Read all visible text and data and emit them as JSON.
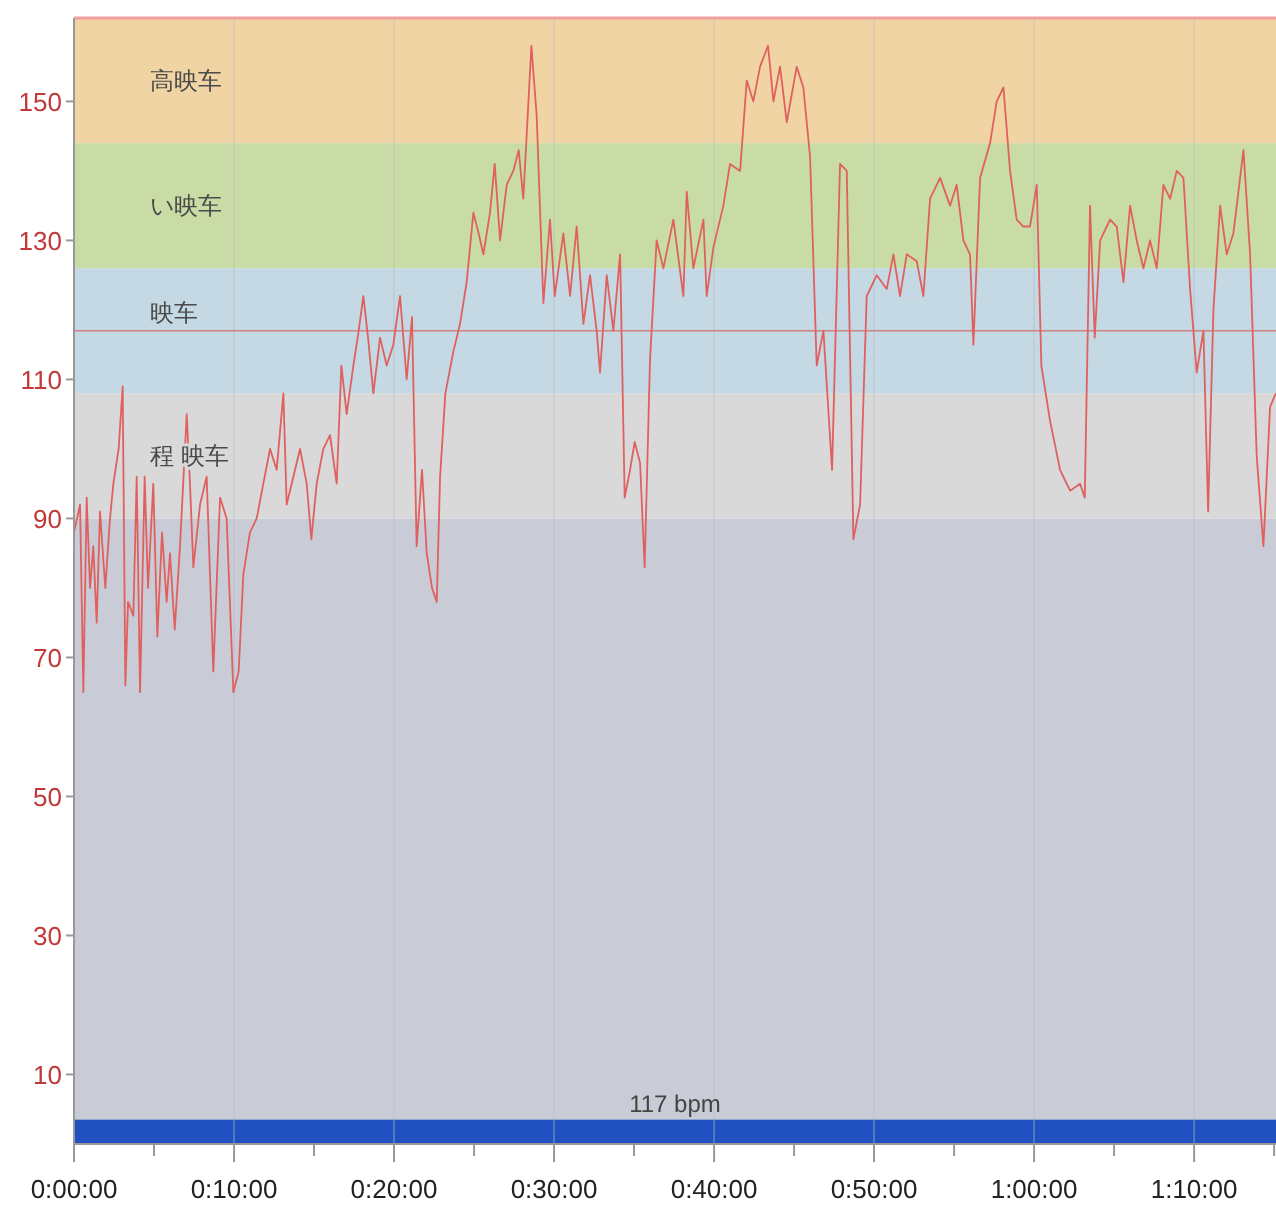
{
  "chart_data": {
    "type": "line",
    "x": [
      0,
      0.0063,
      0.0097,
      0.0132,
      0.0167,
      0.0201,
      0.0236,
      0.0271,
      0.0326,
      0.0375,
      0.041,
      0.0465,
      0.0507,
      0.0535,
      0.0563,
      0.0618,
      0.0653,
      0.0688,
      0.0736,
      0.0771,
      0.0826,
      0.0868,
      0.0917,
      0.0965,
      0.1,
      0.1049,
      0.1104,
      0.1174,
      0.1208,
      0.1243,
      0.1313,
      0.1382,
      0.1451,
      0.1521,
      0.159,
      0.166,
      0.1715,
      0.1764,
      0.1833,
      0.1903,
      0.1972,
      0.2042,
      0.2111,
      0.2181,
      0.2215,
      0.2285,
      0.2354,
      0.2424,
      0.2472,
      0.2528,
      0.2597,
      0.2667,
      0.2736,
      0.2785,
      0.284,
      0.291,
      0.2965,
      0.3014,
      0.3063,
      0.3118,
      0.3188,
      0.3257,
      0.3326,
      0.3396,
      0.3465,
      0.3521,
      0.3569,
      0.3625,
      0.3674,
      0.3729,
      0.3778,
      0.3813,
      0.3868,
      0.3951,
      0.4021,
      0.409,
      0.416,
      0.4215,
      0.4264,
      0.4333,
      0.4382,
      0.4438,
      0.4507,
      0.4576,
      0.4632,
      0.468,
      0.4764,
      0.4819,
      0.4889,
      0.4958,
      0.5007,
      0.5097,
      0.5167,
      0.5236,
      0.5306,
      0.5375,
      0.5444,
      0.5479,
      0.5549,
      0.5618,
      0.5688,
      0.5736,
      0.5792,
      0.584,
      0.5896,
      0.5944,
      0.6,
      0.6069,
      0.6139,
      0.6243,
      0.6347,
      0.6382,
      0.6451,
      0.6556,
      0.659,
      0.666,
      0.6764,
      0.6833,
      0.6938,
      0.7007,
      0.7076,
      0.7146,
      0.7229,
      0.7285,
      0.7354,
      0.7424,
      0.7528,
      0.7597,
      0.7667,
      0.7736,
      0.7806,
      0.7896,
      0.7979,
      0.8049,
      0.8118,
      0.8188,
      0.8257,
      0.8361,
      0.8465,
      0.8535,
      0.8604,
      0.8674,
      0.8778,
      0.8847,
      0.8917,
      0.9021,
      0.9125,
      0.9194,
      0.9264,
      0.9333,
      0.9368,
      0.9438,
      0.9542,
      0.9611,
      0.9681,
      0.975,
      0.9819,
      0.9889,
      0.9958,
      1.0028,
      1.0076,
      1.0167,
      1.0271,
      1.0375,
      1.0479,
      1.0528,
      1.0583,
      1.0632,
      1.0688,
      1.0792,
      1.0861,
      1.0931,
      1.1,
      1.1069,
      1.1139,
      1.1208,
      1.1278,
      1.1347,
      1.1417,
      1.1486,
      1.1556,
      1.1625,
      1.1694,
      1.1764,
      1.1813,
      1.1868,
      1.1938,
      1.2007,
      1.2076,
      1.2181,
      1.225,
      1.2319,
      1.2389,
      1.2458,
      1.2517
    ],
    "series": [
      {
        "color": "#e06060",
        "values": [
          88,
          92,
          65,
          93,
          80,
          86,
          75,
          91,
          80,
          90,
          95,
          100,
          109,
          66,
          78,
          76,
          96,
          65,
          96,
          80,
          95,
          73,
          88,
          78,
          85,
          74,
          86,
          105,
          95,
          83,
          92,
          96,
          68,
          93,
          90,
          65,
          68,
          82,
          88,
          90,
          95,
          100,
          97,
          108,
          92,
          96,
          100,
          95,
          87,
          95,
          100,
          102,
          95,
          112,
          105,
          112,
          117,
          122,
          116,
          108,
          116,
          112,
          115,
          122,
          110,
          119,
          86,
          97,
          85,
          80,
          78,
          96,
          108,
          114,
          118,
          124,
          134,
          131,
          128,
          134,
          141,
          130,
          138,
          140,
          143,
          136,
          158,
          148,
          121,
          133,
          122,
          131,
          122,
          132,
          118,
          125,
          117,
          111,
          125,
          117,
          128,
          93,
          97,
          101,
          98,
          83,
          113,
          130,
          126,
          133,
          122,
          137,
          126,
          133,
          122,
          129,
          135,
          141,
          140,
          153,
          150,
          155,
          158,
          150,
          155,
          147,
          155,
          152,
          142,
          112,
          117,
          97,
          141,
          140,
          87,
          92,
          122,
          125,
          123,
          128,
          122,
          128,
          127,
          122,
          136,
          139,
          135,
          138,
          130,
          128,
          115,
          139,
          144,
          150,
          152,
          140,
          133,
          132,
          132,
          138,
          112,
          104,
          97,
          94,
          95,
          93,
          135,
          116,
          130,
          133,
          132,
          124,
          135,
          130,
          126,
          130,
          126,
          138,
          136,
          140,
          139,
          123,
          111,
          117,
          91,
          120,
          135,
          128,
          131,
          143,
          128,
          99,
          86,
          106,
          108
        ]
      }
    ],
    "xlim": [
      0,
      1.252
    ],
    "xticks": [
      {
        "value": 0,
        "label": "0:00:00"
      },
      {
        "value": 0.0833,
        "label": null
      },
      {
        "value": 0.1667,
        "label": "0:10:00"
      },
      {
        "value": 0.25,
        "label": null
      },
      {
        "value": 0.3333,
        "label": "0:20:00"
      },
      {
        "value": 0.4167,
        "label": null
      },
      {
        "value": 0.5,
        "label": "0:30:00"
      },
      {
        "value": 0.5833,
        "label": null
      },
      {
        "value": 0.6667,
        "label": "0:40:00"
      },
      {
        "value": 0.75,
        "label": null
      },
      {
        "value": 0.8333,
        "label": "0:50:00"
      },
      {
        "value": 0.9167,
        "label": null
      },
      {
        "value": 1,
        "label": "1:00:00"
      },
      {
        "value": 1.0833,
        "label": null
      },
      {
        "value": 1.1667,
        "label": "1:10:00"
      },
      {
        "value": 1.25,
        "label": null
      }
    ],
    "ylim": [
      0,
      162
    ],
    "yticks": [
      10,
      30,
      50,
      70,
      90,
      110,
      130,
      150
    ],
    "grid": "x",
    "bands": [
      {
        "axis": "y",
        "from": 0,
        "to": 90,
        "color": "#c9ccd6"
      },
      {
        "axis": "y",
        "from": 90,
        "to": 108,
        "color": "#d9d9d9",
        "label": "程 映车"
      },
      {
        "axis": "y",
        "from": 108,
        "to": 126,
        "color": "#c4d9e3",
        "label": "映车"
      },
      {
        "axis": "y",
        "from": 126,
        "to": 144,
        "color": "#c9dca6",
        "label": "い映车"
      },
      {
        "axis": "y",
        "from": 144,
        "to": 162,
        "color": "#f0d4a4",
        "label": "高映车"
      },
      {
        "axis": "y",
        "from": 0,
        "to": 3.5,
        "color": "#2150c0"
      }
    ],
    "ref_lines": [
      {
        "axis": "y",
        "value": 117,
        "color": "#d08080"
      }
    ],
    "annotations": [
      "117 bpm"
    ]
  }
}
